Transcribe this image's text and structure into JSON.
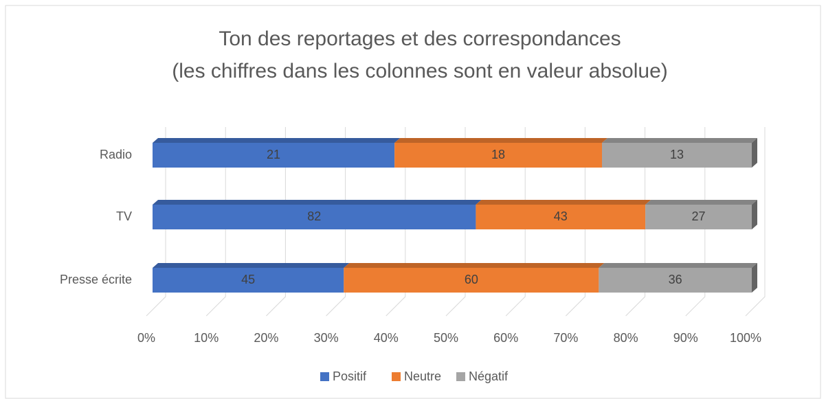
{
  "chart_data": {
    "type": "bar",
    "orientation": "horizontal",
    "stacking": "percent",
    "title": [
      "Ton des reportages et des correspondances",
      "(les chiffres dans les colonnes sont en valeur absolue)"
    ],
    "categories": [
      "Radio",
      "TV",
      "Presse écrite"
    ],
    "series": [
      {
        "name": "Positif",
        "color": "#4472c4",
        "values": [
          21,
          82,
          45
        ]
      },
      {
        "name": "Neutre",
        "color": "#ed7d31",
        "values": [
          18,
          43,
          60
        ]
      },
      {
        "name": "Négatif",
        "color": "#a5a5a5",
        "values": [
          13,
          27,
          36
        ]
      }
    ],
    "xlim": [
      0,
      100
    ],
    "xticks": [
      {
        "value": 0,
        "label": "0%"
      },
      {
        "value": 10,
        "label": "10%"
      },
      {
        "value": 20,
        "label": "20%"
      },
      {
        "value": 30,
        "label": "30%"
      },
      {
        "value": 40,
        "label": "40%"
      },
      {
        "value": 50,
        "label": "50%"
      },
      {
        "value": 60,
        "label": "60%"
      },
      {
        "value": 70,
        "label": "70%"
      },
      {
        "value": 80,
        "label": "80%"
      },
      {
        "value": 90,
        "label": "90%"
      },
      {
        "value": 100,
        "label": "100%"
      }
    ],
    "grid": true,
    "legend": "bottom"
  }
}
